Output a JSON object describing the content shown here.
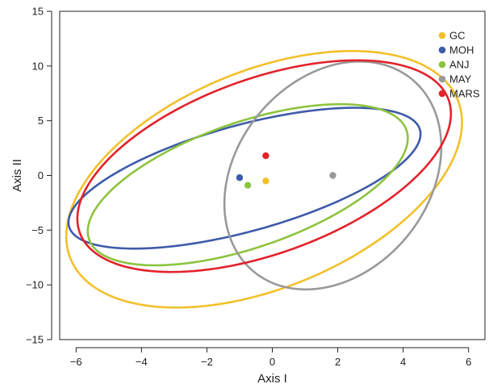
{
  "chart_data": {
    "type": "scatter",
    "xlabel": "Axis I",
    "ylabel": "Axis II",
    "xlim": [
      -6.5,
      6.5
    ],
    "ylim": [
      -15,
      15
    ],
    "xticks": [
      -6,
      -4,
      -2,
      0,
      2,
      4,
      6
    ],
    "yticks": [
      -15,
      -10,
      -5,
      0,
      5,
      10,
      15
    ],
    "grid": false,
    "legend_position": "top-right",
    "series": [
      {
        "name": "GC",
        "color": "#f2c029",
        "centroid": [
          -0.2,
          -0.5
        ],
        "ellipse": {
          "cx": -0.25,
          "cy": -0.35,
          "a": 5.25,
          "b": 12.1,
          "angle_deg": -16
        }
      },
      {
        "name": "MOH",
        "color": "#3e5ba9",
        "centroid": [
          -1.0,
          -0.2
        ],
        "ellipse": {
          "cx": -0.85,
          "cy": -0.25,
          "a": 3.55,
          "b": 7.6,
          "angle_deg": -37
        }
      },
      {
        "name": "ANJ",
        "color": "#8cc43f",
        "centroid": [
          -0.75,
          -0.9
        ],
        "ellipse": {
          "cx": -0.75,
          "cy": -0.85,
          "a": 3.65,
          "b": 8.05,
          "angle_deg": -27
        }
      },
      {
        "name": "MAY",
        "color": "#999999",
        "centroid": [
          1.85,
          0.0
        ],
        "ellipse": {
          "cx": 1.85,
          "cy": 0.0,
          "a": 3.2,
          "b": 10.45,
          "angle_deg": -5
        }
      },
      {
        "name": "MARS",
        "color": "#e3222a",
        "centroid": [
          -0.2,
          1.8
        ],
        "ellipse": {
          "cx": -0.25,
          "cy": 0.85,
          "a": 4.7,
          "b": 10.2,
          "angle_deg": -21
        }
      }
    ]
  }
}
